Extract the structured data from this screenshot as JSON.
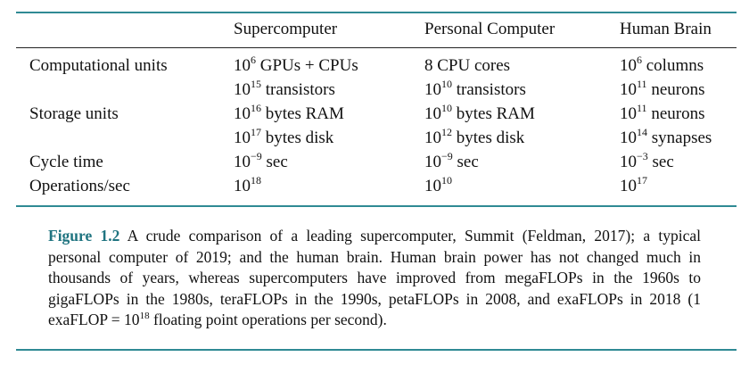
{
  "table": {
    "headers": {
      "supercomputer": "Supercomputer",
      "personal": "Personal Computer",
      "brain": "Human Brain"
    },
    "rows": [
      {
        "label": "Computational units",
        "super": {
          "base": "10",
          "exp": "6",
          "rest": " GPUs + CPUs"
        },
        "pc": {
          "base": "8 CPU cores",
          "exp": "",
          "rest": ""
        },
        "brain": {
          "base": "10",
          "exp": "6",
          "rest": " columns"
        }
      },
      {
        "label": "",
        "super": {
          "base": "10",
          "exp": "15",
          "rest": " transistors"
        },
        "pc": {
          "base": "10",
          "exp": "10",
          "rest": " transistors"
        },
        "brain": {
          "base": "10",
          "exp": "11",
          "rest": " neurons"
        }
      },
      {
        "label": "Storage units",
        "super": {
          "base": "10",
          "exp": "16",
          "rest": " bytes RAM"
        },
        "pc": {
          "base": "10",
          "exp": "10",
          "rest": " bytes RAM"
        },
        "brain": {
          "base": "10",
          "exp": "11",
          "rest": " neurons"
        }
      },
      {
        "label": "",
        "super": {
          "base": "10",
          "exp": "17",
          "rest": " bytes disk"
        },
        "pc": {
          "base": "10",
          "exp": "12",
          "rest": " bytes disk"
        },
        "brain": {
          "base": "10",
          "exp": "14",
          "rest": " synapses"
        }
      },
      {
        "label": "Cycle time",
        "super": {
          "base": "10",
          "exp": "−9",
          "rest": " sec"
        },
        "pc": {
          "base": "10",
          "exp": "−9",
          "rest": " sec"
        },
        "brain": {
          "base": "10",
          "exp": "−3",
          "rest": " sec"
        }
      },
      {
        "label": "Operations/sec",
        "super": {
          "base": "10",
          "exp": "18",
          "rest": ""
        },
        "pc": {
          "base": "10",
          "exp": "10",
          "rest": ""
        },
        "brain": {
          "base": "10",
          "exp": "17",
          "rest": ""
        }
      }
    ]
  },
  "caption": {
    "label": "Figure 1.2",
    "text_before_exp": " A crude comparison of a leading supercomputer, Summit (Feldman, 2017); a typical personal computer of 2019; and the human brain.  Human brain power has not changed much in thousands of years, whereas supercomputers have improved from megaFLOPs in the 1960s to gigaFLOPs in the 1980s, teraFLOPs in the 1990s, petaFLOPs in 2008, and exaFLOPs in 2018 (1 exaFLOP = 10",
    "exp": "18",
    "text_after_exp": " floating point operations per second)."
  },
  "colors": {
    "rule": "#2f8a94",
    "figure_label": "#1f7480"
  }
}
